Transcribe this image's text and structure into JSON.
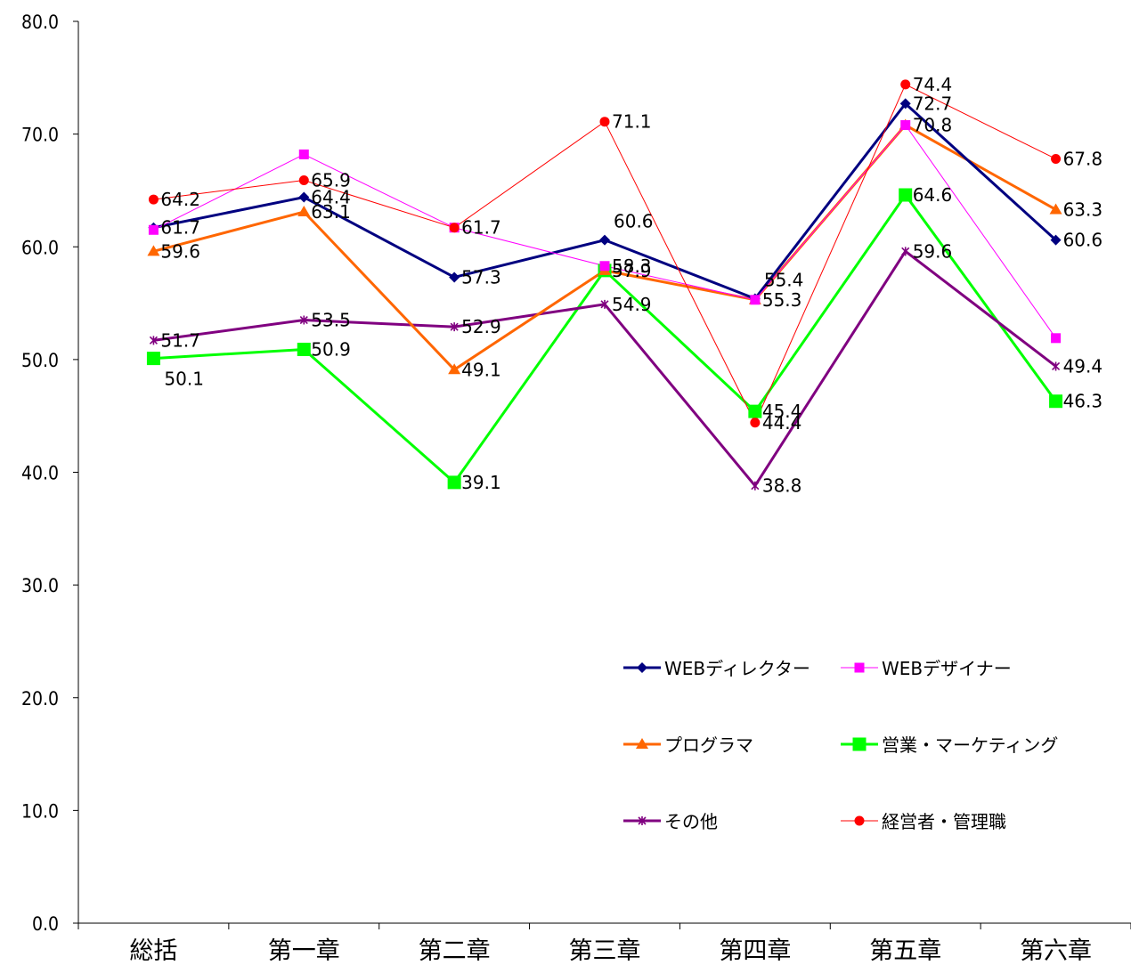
{
  "chart_data": {
    "type": "line",
    "title": "",
    "xlabel": "",
    "ylabel": "",
    "ylim": [
      0,
      80
    ],
    "yticks": [
      "0.0",
      "10.0",
      "20.0",
      "30.0",
      "40.0",
      "50.0",
      "60.0",
      "70.0",
      "80.0"
    ],
    "categories": [
      "総括",
      "第一章",
      "第二章",
      "第三章",
      "第四章",
      "第五章",
      "第六章"
    ],
    "grid": false,
    "legend_position": "bottom-right, inside plot",
    "series": [
      {
        "name": "WEBディレクター",
        "values": [
          61.7,
          64.4,
          57.3,
          60.6,
          55.4,
          72.7,
          60.6
        ],
        "labels": [
          "61.7",
          "64.4",
          "57.3",
          "60.6",
          "55.4",
          "72.7",
          "60.6"
        ],
        "color": "#000080",
        "marker": "diamond"
      },
      {
        "name": "WEBデザイナー",
        "values": [
          61.5,
          68.2,
          61.7,
          58.3,
          55.3,
          70.8,
          51.9
        ],
        "labels": [
          "",
          "",
          "",
          "58.3",
          "",
          "70.8",
          ""
        ],
        "color": "#ff00ff",
        "marker": "square"
      },
      {
        "name": "プログラマ",
        "values": [
          59.6,
          63.1,
          49.1,
          57.9,
          55.3,
          70.8,
          63.3
        ],
        "labels": [
          "59.6",
          "63.1",
          "49.1",
          "",
          "55.3",
          "",
          "63.3"
        ],
        "color": "#ff6600",
        "marker": "triangle"
      },
      {
        "name": "営業・マーケティング",
        "values": [
          50.1,
          50.9,
          39.1,
          57.9,
          45.4,
          64.6,
          46.3
        ],
        "labels": [
          "50.1",
          "50.9",
          "39.1",
          "57.9",
          "45.4",
          "64.6",
          "46.3"
        ],
        "color": "#00ff00",
        "marker": "bigsquare"
      },
      {
        "name": "その他",
        "values": [
          51.7,
          53.5,
          52.9,
          54.9,
          38.8,
          59.6,
          49.4
        ],
        "labels": [
          "51.7",
          "53.5",
          "52.9",
          "54.9",
          "38.8",
          "59.6",
          "49.4"
        ],
        "color": "#800080",
        "marker": "star"
      },
      {
        "name": "経営者・管理職",
        "values": [
          64.2,
          65.9,
          61.7,
          71.1,
          44.4,
          74.4,
          67.8
        ],
        "labels": [
          "64.2",
          "65.9",
          "61.7",
          "71.1",
          "44.4",
          "74.4",
          "67.8"
        ],
        "color": "#ff0000",
        "marker": "circle"
      }
    ]
  }
}
